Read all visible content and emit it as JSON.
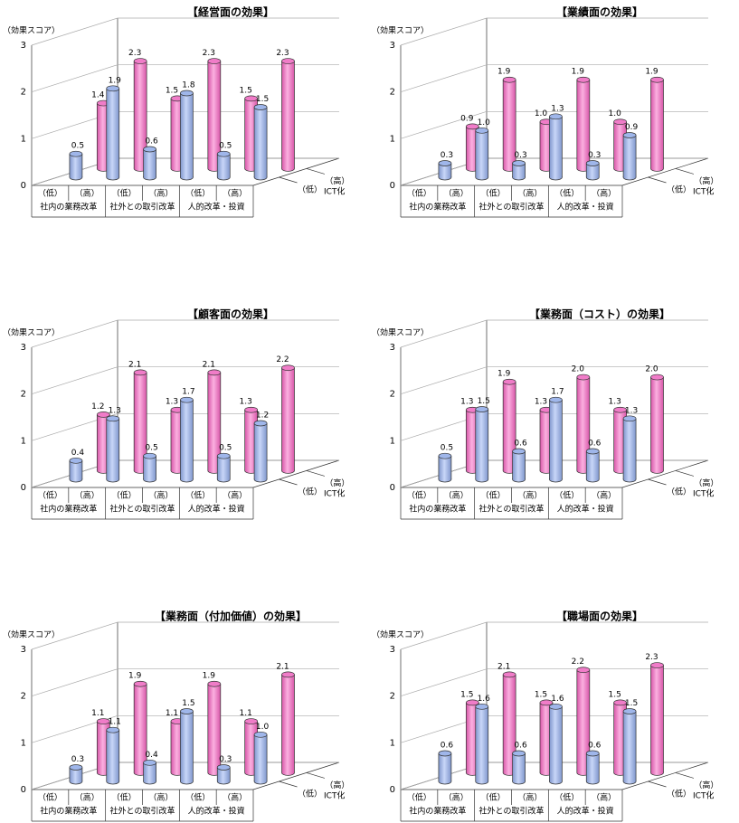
{
  "chart_data": [
    {
      "type": "bar3d",
      "title": "【経営面の効果】",
      "y_label": "（効果スコア）",
      "categories": [
        "（低）",
        "（高）",
        "（低）",
        "（高）",
        "（低）",
        "（高）"
      ],
      "groups": [
        "社内の業務改革",
        "社外との取引改革",
        "人的改革・投資"
      ],
      "depth_axis_label": "ICT化",
      "ylim": [
        0,
        3
      ],
      "yticks": [
        0,
        1,
        2,
        3
      ],
      "grid": true,
      "series": [
        {
          "name": "（低）",
          "color": "#9fb6ea",
          "values": [
            0.5,
            1.9,
            0.6,
            1.8,
            0.5,
            1.5
          ],
          "value_labels": [
            "0.5",
            "1.9",
            "0.6",
            "1.8",
            "0.5",
            "1.5"
          ]
        },
        {
          "name": "（高）",
          "color": "#f07cc8",
          "values": [
            1.4,
            2.3,
            1.5,
            2.3,
            1.5,
            2.3
          ],
          "value_labels": [
            "1.4",
            "2.3",
            "1.5",
            "2.3",
            "1.5",
            "2.3"
          ]
        }
      ]
    },
    {
      "type": "bar3d",
      "title": "【業績面の効果】",
      "y_label": "（効果スコア）",
      "categories": [
        "（低）",
        "（高）",
        "（低）",
        "（高）",
        "（低）",
        "（高）"
      ],
      "groups": [
        "社内の業務改革",
        "社外との取引改革",
        "人的改革・投資"
      ],
      "depth_axis_label": "ICT化",
      "ylim": [
        0,
        3
      ],
      "yticks": [
        0,
        1,
        2,
        3
      ],
      "grid": true,
      "series": [
        {
          "name": "（低）",
          "color": "#9fb6ea",
          "values": [
            0.3,
            1.0,
            0.3,
            1.3,
            0.3,
            0.9
          ],
          "value_labels": [
            "0.3",
            "1.0",
            "0.3",
            "1.3",
            "0.3",
            "0.9"
          ]
        },
        {
          "name": "（高）",
          "color": "#f07cc8",
          "values": [
            0.9,
            1.9,
            1.0,
            1.9,
            1.0,
            1.9
          ],
          "value_labels": [
            "0.9",
            "1.9",
            "1.0",
            "1.9",
            "1.0",
            "1.9"
          ]
        }
      ]
    },
    {
      "type": "bar3d",
      "title": "【顧客面の効果】",
      "y_label": "（効果スコア）",
      "categories": [
        "（低）",
        "（高）",
        "（低）",
        "（高）",
        "（低）",
        "（高）"
      ],
      "groups": [
        "社内の業務改革",
        "社外との取引改革",
        "人的改革・投資"
      ],
      "depth_axis_label": "ICT化",
      "ylim": [
        0,
        3
      ],
      "yticks": [
        0,
        1,
        2,
        3
      ],
      "grid": true,
      "series": [
        {
          "name": "（低）",
          "color": "#9fb6ea",
          "values": [
            0.4,
            1.3,
            0.5,
            1.7,
            0.5,
            1.2
          ],
          "value_labels": [
            "0.4",
            "1.3",
            "0.5",
            "1.7",
            "0.5",
            "1.2"
          ]
        },
        {
          "name": "（高）",
          "color": "#f07cc8",
          "values": [
            1.2,
            2.1,
            1.3,
            2.1,
            1.3,
            2.2
          ],
          "value_labels": [
            "1.2",
            "2.1",
            "1.3",
            "2.1",
            "1.3",
            "2.2"
          ]
        }
      ]
    },
    {
      "type": "bar3d",
      "title": "【業務面（コスト）の効果】",
      "y_label": "（効果スコア）",
      "categories": [
        "（低）",
        "（高）",
        "（低）",
        "（高）",
        "（低）",
        "（高）"
      ],
      "groups": [
        "社内の業務改革",
        "社外との取引改革",
        "人的改革・投資"
      ],
      "depth_axis_label": "ICT化",
      "ylim": [
        0,
        3
      ],
      "yticks": [
        0,
        1,
        2,
        3
      ],
      "grid": true,
      "series": [
        {
          "name": "（低）",
          "color": "#9fb6ea",
          "values": [
            0.5,
            1.5,
            0.6,
            1.7,
            0.6,
            1.3
          ],
          "value_labels": [
            "0.5",
            "1.5",
            "0.6",
            "1.7",
            "0.6",
            "1.3"
          ]
        },
        {
          "name": "（高）",
          "color": "#f07cc8",
          "values": [
            1.3,
            1.9,
            1.3,
            2.0,
            1.3,
            2.0
          ],
          "value_labels": [
            "1.3",
            "1.9",
            "1.3",
            "2.0",
            "1.3",
            "2.0"
          ]
        }
      ]
    },
    {
      "type": "bar3d",
      "title": "【業務面（付加価値）の効果】",
      "y_label": "（効果スコア）",
      "categories": [
        "（低）",
        "（高）",
        "（低）",
        "（高）",
        "（低）",
        "（高）"
      ],
      "groups": [
        "社内の業務改革",
        "社外との取引改革",
        "人的改革・投資"
      ],
      "depth_axis_label": "ICT化",
      "ylim": [
        0,
        3
      ],
      "yticks": [
        0,
        1,
        2,
        3
      ],
      "grid": true,
      "series": [
        {
          "name": "（低）",
          "color": "#9fb6ea",
          "values": [
            0.3,
            1.1,
            0.4,
            1.5,
            0.3,
            1.0
          ],
          "value_labels": [
            "0.3",
            "1.1",
            "0.4",
            "1.5",
            "0.3",
            "1.0"
          ]
        },
        {
          "name": "（高）",
          "color": "#f07cc8",
          "values": [
            1.1,
            1.9,
            1.1,
            1.9,
            1.1,
            2.1
          ],
          "value_labels": [
            "1.1",
            "1.9",
            "1.1",
            "1.9",
            "1.1",
            "2.1"
          ]
        }
      ]
    },
    {
      "type": "bar3d",
      "title": "【職場面の効果】",
      "y_label": "（効果スコア）",
      "categories": [
        "（低）",
        "（高）",
        "（低）",
        "（高）",
        "（低）",
        "（高）"
      ],
      "groups": [
        "社内の業務改革",
        "社外との取引改革",
        "人的改革・投資"
      ],
      "depth_axis_label": "ICT化",
      "ylim": [
        0,
        3
      ],
      "yticks": [
        0,
        1,
        2,
        3
      ],
      "grid": true,
      "series": [
        {
          "name": "（低）",
          "color": "#9fb6ea",
          "values": [
            0.6,
            1.6,
            0.6,
            1.6,
            0.6,
            1.5
          ],
          "value_labels": [
            "0.6",
            "1.6",
            "0.6",
            "1.6",
            "0.6",
            "1.5"
          ]
        },
        {
          "name": "（高）",
          "color": "#f07cc8",
          "values": [
            1.5,
            2.1,
            1.5,
            2.2,
            1.5,
            2.3
          ],
          "value_labels": [
            "1.5",
            "2.1",
            "1.5",
            "2.2",
            "1.5",
            "2.3"
          ]
        }
      ]
    }
  ]
}
